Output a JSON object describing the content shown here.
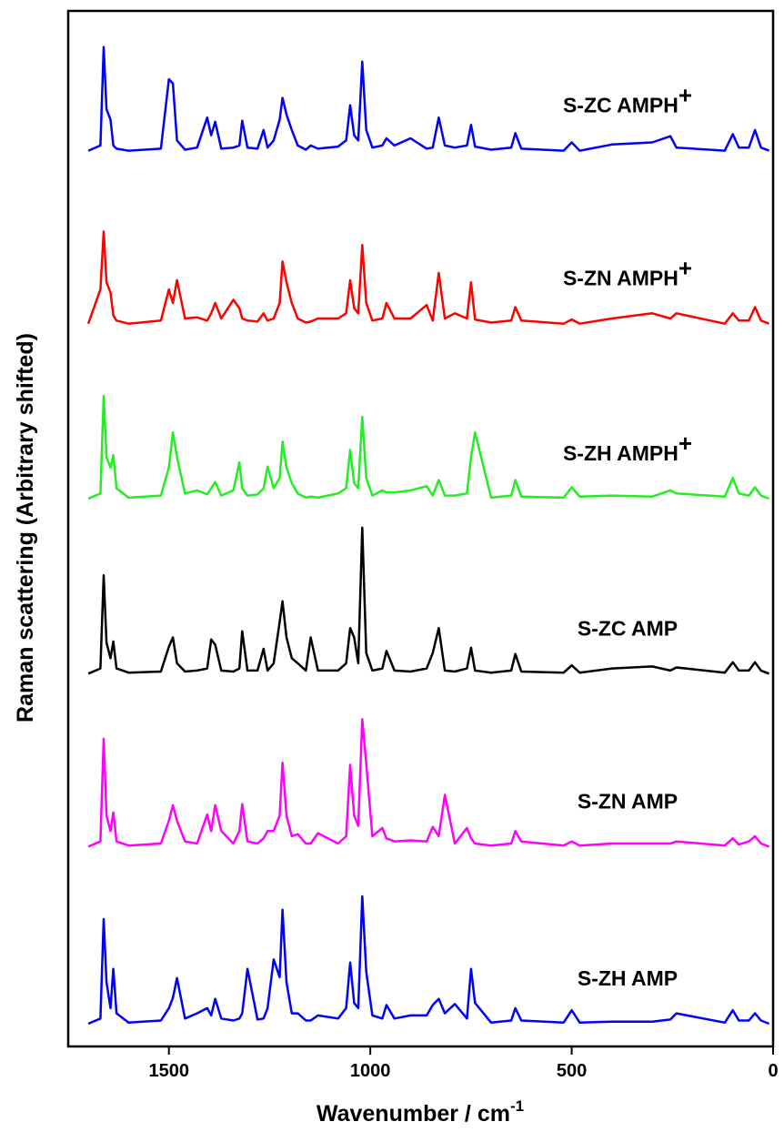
{
  "chart_data": {
    "type": "line",
    "x_label": {
      "text": "Wavenumber / cm",
      "superscript": "-1"
    },
    "y_label": "Raman scattering (Arbitrary shifted)",
    "xlim": [
      1750,
      0
    ],
    "ylim": [
      0,
      100
    ],
    "xticks": [
      1500,
      1000,
      500,
      0
    ],
    "x": [
      1700,
      1670,
      1662,
      1655,
      1645,
      1638,
      1630,
      1600,
      1520,
      1500,
      1490,
      1480,
      1460,
      1430,
      1405,
      1395,
      1385,
      1370,
      1340,
      1325,
      1318,
      1305,
      1280,
      1265,
      1255,
      1240,
      1225,
      1218,
      1208,
      1195,
      1180,
      1160,
      1148,
      1130,
      1080,
      1060,
      1050,
      1040,
      1030,
      1020,
      1010,
      995,
      970,
      960,
      940,
      900,
      860,
      845,
      830,
      815,
      790,
      760,
      750,
      740,
      700,
      650,
      640,
      625,
      520,
      500,
      480,
      400,
      300,
      255,
      240,
      120,
      100,
      85,
      60,
      45,
      30,
      10
    ],
    "series": [
      {
        "name": "S-ZC AMPH",
        "superscript": "+",
        "color": "#0000ff",
        "values": [
          86.5,
          87,
          96.5,
          90.5,
          89.5,
          87,
          86.7,
          86.5,
          86.7,
          93.4,
          93,
          87.5,
          86.6,
          86.8,
          89.7,
          88,
          89.3,
          86.7,
          86.8,
          87,
          89.4,
          86.8,
          86.7,
          88.5,
          86.8,
          87.5,
          89.5,
          91.6,
          90,
          88.5,
          87,
          86.6,
          87,
          86.7,
          86.9,
          87.5,
          90.9,
          88,
          87.5,
          95.1,
          88.5,
          86.8,
          87,
          87.7,
          87,
          87.7,
          86.7,
          86.8,
          89.7,
          87,
          86.8,
          87,
          89,
          86.9,
          86.6,
          86.8,
          88.2,
          86.7,
          86.5,
          87.3,
          86.5,
          87.1,
          87.3,
          87.9,
          86.8,
          86.5,
          88.1,
          86.8,
          86.8,
          88.5,
          86.8,
          86.5
        ]
      },
      {
        "name": "S-ZN AMPH",
        "superscript": "+",
        "color": "#ff0000",
        "values": [
          69.8,
          73.1,
          78.7,
          73.8,
          72.8,
          70.6,
          70.1,
          69.8,
          70.1,
          73.1,
          71.8,
          74,
          70.3,
          70.4,
          70.1,
          70.8,
          71.8,
          70.3,
          72.1,
          71.3,
          70.3,
          70.1,
          70,
          70.8,
          70.1,
          70.3,
          71.8,
          75.8,
          73.8,
          71.8,
          70.3,
          69.9,
          70,
          70.3,
          70.3,
          70.8,
          74,
          71.3,
          70.8,
          77.4,
          71.8,
          70.1,
          70.3,
          71.8,
          70.3,
          70.3,
          71.6,
          70.1,
          74.7,
          70.3,
          70.8,
          70.3,
          73.8,
          70.2,
          69.9,
          70.1,
          71.4,
          70.1,
          69.8,
          70.2,
          69.8,
          70.3,
          70.8,
          70.3,
          70.8,
          69.8,
          70.8,
          70.1,
          70.1,
          71.4,
          70.1,
          69.8
        ]
      },
      {
        "name": "S-ZH AMPH",
        "superscript": "+",
        "color": "#22ee22",
        "values": [
          52.9,
          53.4,
          62.8,
          56.9,
          55.9,
          57.1,
          53.9,
          53,
          53.2,
          55.9,
          59.3,
          56.9,
          53.4,
          53.7,
          53.3,
          53.9,
          54.5,
          53.2,
          53.7,
          56.4,
          53.9,
          53.2,
          53.3,
          53.9,
          56,
          53.9,
          54.9,
          58.4,
          55.9,
          54.4,
          53.4,
          53,
          53.1,
          53,
          53.4,
          53.9,
          57.6,
          54.4,
          53.9,
          60.8,
          54.9,
          53.2,
          53.7,
          53.5,
          53.5,
          53.7,
          54.1,
          53.2,
          54.7,
          53.2,
          53.2,
          53.4,
          56.9,
          59.3,
          53,
          53.2,
          54.7,
          53.1,
          53,
          54,
          53.1,
          53.2,
          53.1,
          53.7,
          53.4,
          53.1,
          54.9,
          53.4,
          53.2,
          54,
          53.2,
          52.9
        ]
      },
      {
        "name": "S-ZC AMP",
        "color": "#000000",
        "values": [
          36,
          36.5,
          45.5,
          39,
          37.5,
          39.1,
          36.5,
          36.1,
          36.2,
          38.6,
          39.5,
          37,
          36.2,
          36.3,
          36.5,
          39.3,
          38.8,
          36.3,
          36.2,
          36.5,
          40.1,
          36.3,
          36.3,
          38.4,
          36.3,
          37,
          41,
          43,
          39.5,
          37.5,
          37,
          36.3,
          39.5,
          36.3,
          36.3,
          37,
          40.4,
          39.5,
          37,
          50.1,
          38,
          36.3,
          36.5,
          38.2,
          36.3,
          36.2,
          36.5,
          38,
          40.4,
          36.3,
          36.2,
          36.5,
          38.5,
          36.3,
          36.1,
          36.3,
          37.9,
          36.2,
          36.1,
          36.8,
          36.1,
          36.5,
          36.7,
          36.3,
          36.6,
          36.1,
          37.1,
          36.3,
          36.3,
          37.1,
          36.3,
          36
        ]
      },
      {
        "name": "S-ZN AMP",
        "color": "#ff00ff",
        "values": [
          19.3,
          19.8,
          29.7,
          22.3,
          20.8,
          22.6,
          19.8,
          19.4,
          19.6,
          21.8,
          23.3,
          21.8,
          19.8,
          19.6,
          22.4,
          20.8,
          23.3,
          20.8,
          19.6,
          20.8,
          23.4,
          19.8,
          19.6,
          20.1,
          20.8,
          20.8,
          22.3,
          27.4,
          22.3,
          20.3,
          20.5,
          19.6,
          19.6,
          20.6,
          19.6,
          20.3,
          27.2,
          22.3,
          21.3,
          31.6,
          27.3,
          20.3,
          21.1,
          20.1,
          19.8,
          19.9,
          19.8,
          21.2,
          20.3,
          24.3,
          19.6,
          21.1,
          20.1,
          19.6,
          19.4,
          19.6,
          20.8,
          19.8,
          19.4,
          19.8,
          19.4,
          19.6,
          19.6,
          19.6,
          19.8,
          19.4,
          20.1,
          19.5,
          19.8,
          20.3,
          19.6,
          19.3
        ]
      },
      {
        "name": "S-ZH AMP",
        "color": "#0000ff",
        "values": [
          2.2,
          2.7,
          12.3,
          6.2,
          3.7,
          7.5,
          3.2,
          2.3,
          2.5,
          3.7,
          4.7,
          6.6,
          2.7,
          3.2,
          3.7,
          3,
          4.6,
          2.7,
          2.5,
          2.7,
          3.2,
          7.5,
          2.6,
          2.7,
          3.7,
          8.4,
          6.7,
          13.2,
          6.2,
          3.2,
          3.2,
          2.5,
          2.5,
          3,
          2.7,
          3.7,
          8.1,
          4.2,
          3.7,
          14.5,
          7.2,
          3,
          2.7,
          4,
          2.7,
          3,
          3,
          4,
          4.6,
          3.2,
          4.1,
          2.7,
          7.5,
          4.2,
          2.3,
          2.5,
          3.7,
          2.5,
          2.3,
          3.5,
          2.3,
          2.4,
          2.4,
          2.6,
          3.2,
          2.3,
          3.5,
          2.5,
          2.5,
          3.2,
          2.5,
          2.2
        ]
      }
    ]
  }
}
